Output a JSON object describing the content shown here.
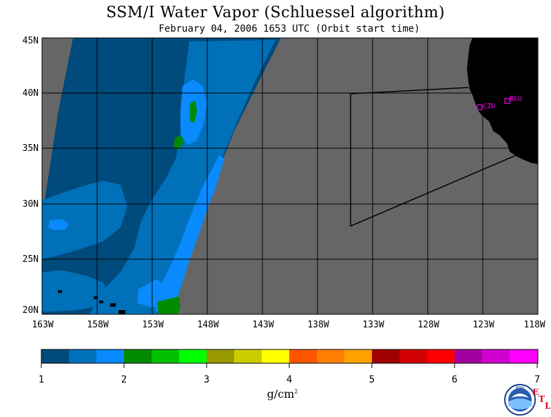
{
  "title": "SSM/I Water Vapor (Schluessel algorithm)",
  "subtitle": "February 04, 2006  1653 UTC  (Orbit start time)",
  "map": {
    "lat_labels": [
      "45N",
      "40N",
      "35N",
      "30N",
      "25N",
      "20N"
    ],
    "lon_labels": [
      "163W",
      "158W",
      "153W",
      "148W",
      "143W",
      "138W",
      "133W",
      "128W",
      "123W",
      "118W"
    ],
    "lat_range": [
      20,
      45
    ],
    "lon_range": [
      -163,
      -118
    ],
    "stations": [
      {
        "code": "CZD",
        "lat": 38.6,
        "lon": -123.2
      },
      {
        "code": "BLU",
        "lat": 39.2,
        "lon": -120.7
      }
    ],
    "colors": {
      "no_data": "#666666",
      "land": "#000000",
      "station": "#ff00ff",
      "grid": "#000000"
    }
  },
  "colorbar": {
    "labels": [
      "1",
      "2",
      "3",
      "4",
      "5",
      "6",
      "7"
    ],
    "range": [
      1,
      7
    ],
    "colors": [
      "#004a7c",
      "#0070b8",
      "#0a8aff",
      "#008a00",
      "#00c000",
      "#00ff00",
      "#999900",
      "#cccc00",
      "#ffff00",
      "#ff5500",
      "#ff7f00",
      "#ffa000",
      "#a00000",
      "#d00000",
      "#ff0000",
      "#a000a0",
      "#d000d0",
      "#ff00ff"
    ],
    "units_main": "g/cm",
    "units_sup": "2"
  },
  "logo": {
    "text": "NOAA",
    "etl": [
      "E",
      "T",
      "L"
    ]
  }
}
